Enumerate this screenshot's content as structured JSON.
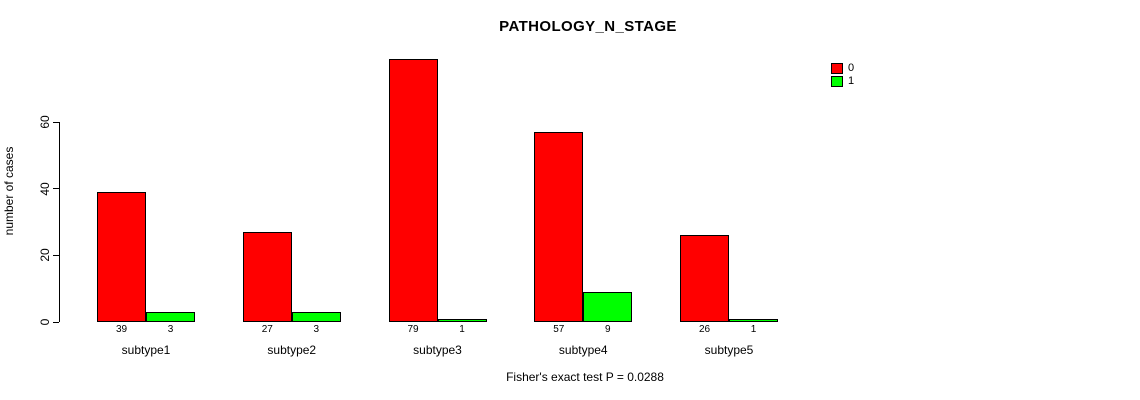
{
  "chart_data": {
    "type": "bar",
    "title": "PATHOLOGY_N_STAGE",
    "categories": [
      "subtype1",
      "subtype2",
      "subtype3",
      "subtype4",
      "subtype5"
    ],
    "series": [
      {
        "name": "0",
        "color": "#ff0000",
        "values": [
          39,
          27,
          79,
          57,
          26
        ]
      },
      {
        "name": "1",
        "color": "#00ff00",
        "values": [
          3,
          3,
          1,
          9,
          1
        ]
      }
    ],
    "xlabel": "",
    "ylabel": "number of cases",
    "yticks": [
      0,
      20,
      40,
      60
    ],
    "ylim": [
      0,
      79
    ],
    "grid": false,
    "legend_position": "top-right",
    "value_labels_shown": true,
    "annotation": "Fisher's exact test P = 0.0288"
  },
  "colors": {
    "background": "#ffffff",
    "axis": "#000000",
    "text": "#000000",
    "series0": "#ff0000",
    "series1": "#00ff00"
  }
}
